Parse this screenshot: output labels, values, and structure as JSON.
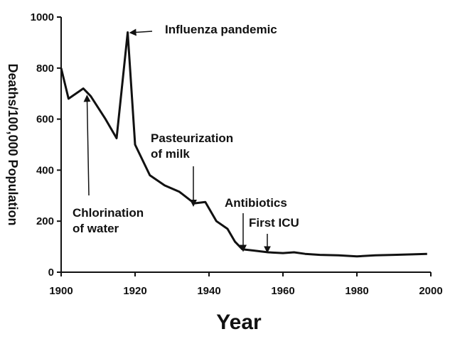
{
  "chart_data": {
    "type": "line",
    "title": "",
    "xlabel": "Year",
    "ylabel": "Deaths/100,000 Population",
    "xlim": [
      1900,
      2000
    ],
    "ylim": [
      0,
      1000
    ],
    "x_ticks": [
      "1900",
      "1920",
      "1940",
      "1960",
      "1980",
      "2000"
    ],
    "y_ticks": [
      "0",
      "200",
      "400",
      "600",
      "800",
      "1000"
    ],
    "grid": false,
    "legend": "none",
    "series": [
      {
        "x": [
          1900,
          1902,
          1906,
          1908,
          1912,
          1915,
          1918,
          1920,
          1924,
          1928,
          1932,
          1936,
          1939,
          1942,
          1945,
          1947,
          1949,
          1952,
          1956,
          1960,
          1963,
          1966,
          1970,
          1975,
          1980,
          1985,
          1990,
          1995,
          1999
        ],
        "y": [
          800,
          680,
          720,
          690,
          600,
          525,
          940,
          500,
          380,
          340,
          315,
          270,
          275,
          200,
          170,
          120,
          90,
          85,
          78,
          75,
          78,
          72,
          68,
          66,
          62,
          66,
          68,
          70,
          72
        ]
      }
    ],
    "annotations": [
      {
        "lines": [
          "Influenza pandemic"
        ],
        "target": [
          1918,
          940
        ]
      },
      {
        "lines": [
          "Chlorination",
          "of water"
        ],
        "target": [
          1907,
          680
        ]
      },
      {
        "lines": [
          "Pasteurization",
          "of milk"
        ],
        "target": [
          1936,
          265
        ]
      },
      {
        "lines": [
          "Antibiotics"
        ],
        "target": [
          1950,
          80
        ]
      },
      {
        "lines": [
          "First ICU"
        ],
        "target": [
          1956,
          75
        ]
      }
    ]
  }
}
